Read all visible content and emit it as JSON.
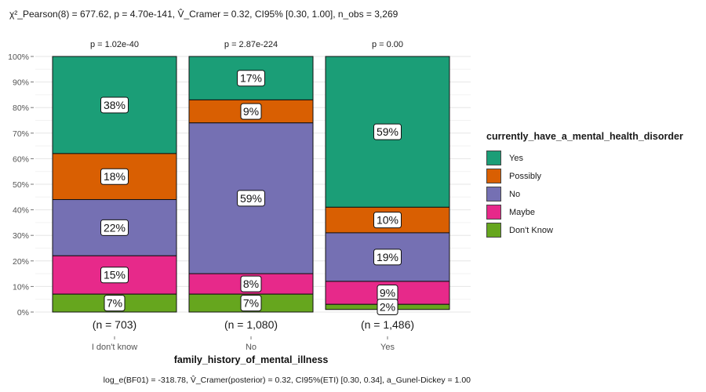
{
  "chart_data": {
    "type": "bar",
    "stacked": true,
    "normalized_percent": true,
    "title_text": "χ²_Pearson(8) = 677.62, p = 4.70e-141, V̂_Cramer = 0.32, CI95% [0.30, 1.00], n_obs = 3,269",
    "subtitle_text": "log_e(BF01) = -318.78, V̂_Cramer(posterior) = 0.32, CI95%(ETI) [0.30, 0.34], a_Gunel-Dickey = 1.00",
    "xlabel": "family_history_of_mental_illness",
    "ylabel": "",
    "categories": [
      "I don't know",
      "No",
      "Yes"
    ],
    "count_labels": [
      "(n = 703)",
      "(n = 1,080)",
      "(n = 1,486)"
    ],
    "p_labels": [
      "p = 1.02e-40",
      "p = 2.87e-224",
      "p = 0.00"
    ],
    "ylim": [
      0,
      100
    ],
    "yticks": [
      "0%",
      "10%",
      "20%",
      "30%",
      "40%",
      "50%",
      "60%",
      "70%",
      "80%",
      "90%",
      "100%"
    ],
    "grid": true,
    "legend_title": "currently_have_a_mental_health_disorder",
    "legend_position": "right",
    "series": [
      {
        "name": "Yes",
        "color": "#1B9E77",
        "values": [
          38,
          17,
          59
        ],
        "labels": [
          "38%",
          "17%",
          "59%"
        ]
      },
      {
        "name": "Possibly",
        "color": "#D95F02",
        "values": [
          18,
          9,
          10
        ],
        "labels": [
          "18%",
          "9%",
          "10%"
        ]
      },
      {
        "name": "No",
        "color": "#7570B3",
        "values": [
          22,
          59,
          19
        ],
        "labels": [
          "22%",
          "59%",
          "19%"
        ]
      },
      {
        "name": "Maybe",
        "color": "#E7298A",
        "values": [
          15,
          8,
          9
        ],
        "labels": [
          "15%",
          "8%",
          "9%"
        ]
      },
      {
        "name": "Don't Know",
        "color": "#66A61E",
        "values": [
          7,
          7,
          2
        ],
        "labels": [
          "7%",
          "7%",
          "2%"
        ]
      }
    ]
  }
}
